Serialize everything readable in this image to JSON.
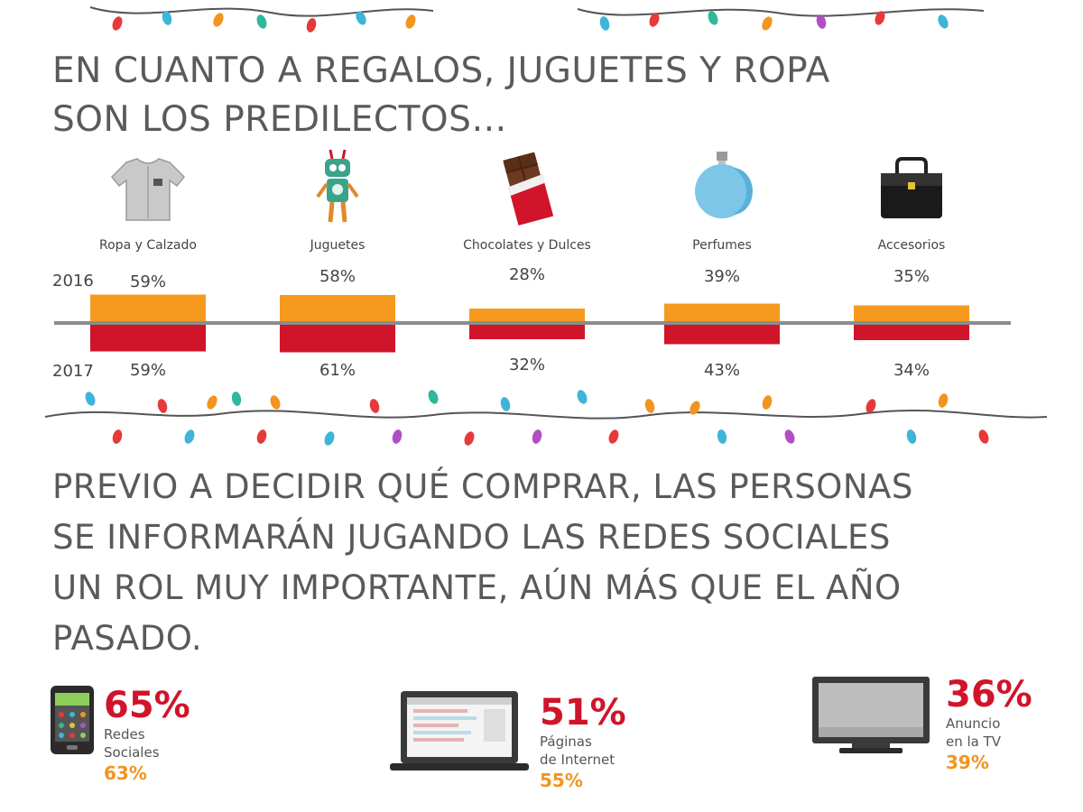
{
  "headline_top": [
    "EN CUANTO A REGALOS, JUGUETES Y ROPA",
    "SON LOS PREDILECTOS…"
  ],
  "headline_bottom": [
    "PREVIO A DECIDIR QUÉ COMPRAR, LAS PERSONAS",
    "SE INFORMARÁN JUGANDO LAS REDES SOCIALES",
    "UN ROL MUY IMPORTANTE, AÚN MÁS QUE EL AÑO",
    "PASADO."
  ],
  "colors": {
    "year_2016": "#f59a1f",
    "year_2017": "#d0142a",
    "axis": "#8c8c8c",
    "text": "#555555"
  },
  "chart_data": [
    {
      "type": "bar",
      "categories": [
        "Ropa y Calzado",
        "Juguetes",
        "Chocolates y Dulces",
        "Perfumes",
        "Accesorios"
      ],
      "category_icons": [
        "shirt-icon",
        "robot-icon",
        "chocolate-icon",
        "perfume-icon",
        "handbag-icon"
      ],
      "series": [
        {
          "name": "2016",
          "values": [
            59,
            58,
            28,
            39,
            35
          ],
          "labels": [
            "59%",
            "58%",
            "28%",
            "39%",
            "35%"
          ],
          "color": "#f59a1f",
          "direction": "up"
        },
        {
          "name": "2017",
          "values": [
            59,
            61,
            32,
            43,
            34
          ],
          "labels": [
            "59%",
            "61%",
            "32%",
            "43%",
            "34%"
          ],
          "color": "#d0142a",
          "direction": "down"
        }
      ],
      "ylim": [
        0,
        100
      ]
    },
    {
      "type": "table",
      "items": [
        {
          "label_lines": [
            "Redes",
            "Sociales"
          ],
          "value_2017": "65%",
          "value_2016": "63%",
          "icon": "smartphone-icon"
        },
        {
          "label_lines": [
            "Páginas",
            "de Internet"
          ],
          "value_2017": "51%",
          "value_2016": "55%",
          "icon": "laptop-icon"
        },
        {
          "label_lines": [
            "Anuncio",
            "en la TV"
          ],
          "value_2017": "36%",
          "value_2016": "39%",
          "icon": "tv-icon"
        }
      ]
    }
  ]
}
